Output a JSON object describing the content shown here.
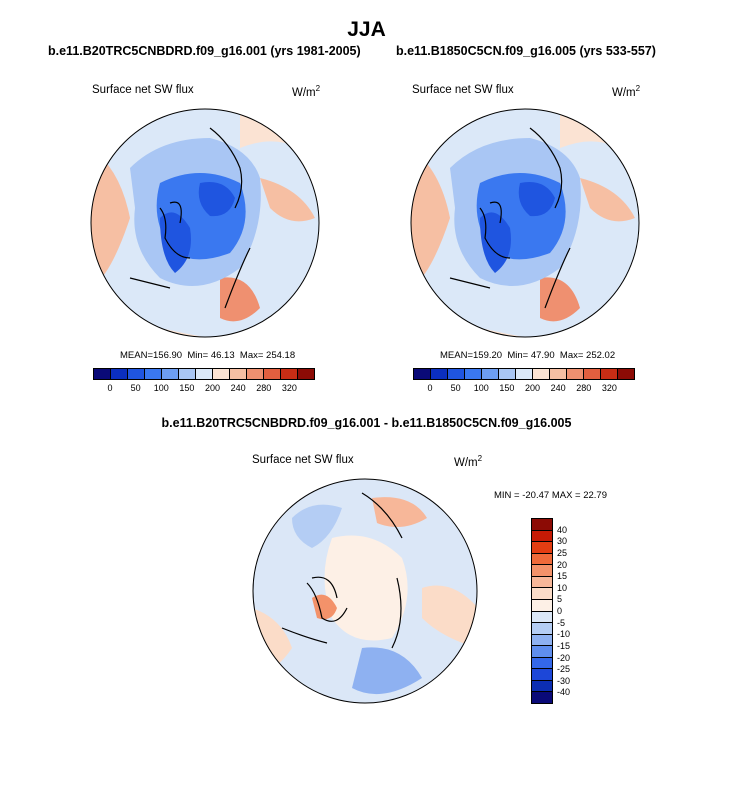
{
  "main_title": "JJA",
  "panels": [
    {
      "title": "b.e11.B20TRC5CNBDRD.f09_g16.001 (yrs 1981-2005)",
      "field": "Surface net SW flux",
      "units": "W/m",
      "units_exp": "2",
      "mean_label": "MEAN=",
      "mean": "156.90",
      "min_label": "Min=",
      "min": "46.13",
      "max_label": "Max=",
      "max": "254.18"
    },
    {
      "title": "b.e11.B1850C5CN.f09_g16.005 (yrs 533-557)",
      "field": "Surface net SW flux",
      "units": "W/m",
      "units_exp": "2",
      "mean_label": "MEAN=",
      "mean": "159.20",
      "min_label": "Min=",
      "min": "47.90",
      "max_label": "Max=",
      "max": "252.02"
    }
  ],
  "diff": {
    "title": "b.e11.B20TRC5CNBDRD.f09_g16.001 - b.e11.B1850C5CN.f09_g16.005",
    "field": "Surface net SW flux",
    "units": "W/m",
    "units_exp": "2",
    "stats": "MIN = -20.47 MAX =  22.79"
  },
  "colorbar_abs": {
    "colors": [
      "#0a0a78",
      "#0b2fbf",
      "#1f55e0",
      "#3a78f0",
      "#6d9ef2",
      "#a9c6f4",
      "#dbe8f8",
      "#fbe3d3",
      "#f6bfa3",
      "#ef9070",
      "#e35f3f",
      "#c92d15",
      "#8c0b05"
    ],
    "ticks": [
      "0",
      "50",
      "100",
      "150",
      "200",
      "240",
      "280",
      "320"
    ]
  },
  "colorbar_diff": {
    "colors": [
      "#8c0b05",
      "#c51a05",
      "#e33d12",
      "#ef6a3a",
      "#f3926a",
      "#f7b799",
      "#fbdcc8",
      "#fdf0e6",
      "#dbe7f7",
      "#b4cdf4",
      "#8eb1f1",
      "#5f8eee",
      "#3468ea",
      "#1d47d8",
      "#0c2eb2",
      "#0a0a78"
    ],
    "ticks": [
      "40",
      "30",
      "25",
      "20",
      "15",
      "10",
      "5",
      "0",
      "-5",
      "-10",
      "-15",
      "-20",
      "-25",
      "-30",
      "-40"
    ]
  }
}
